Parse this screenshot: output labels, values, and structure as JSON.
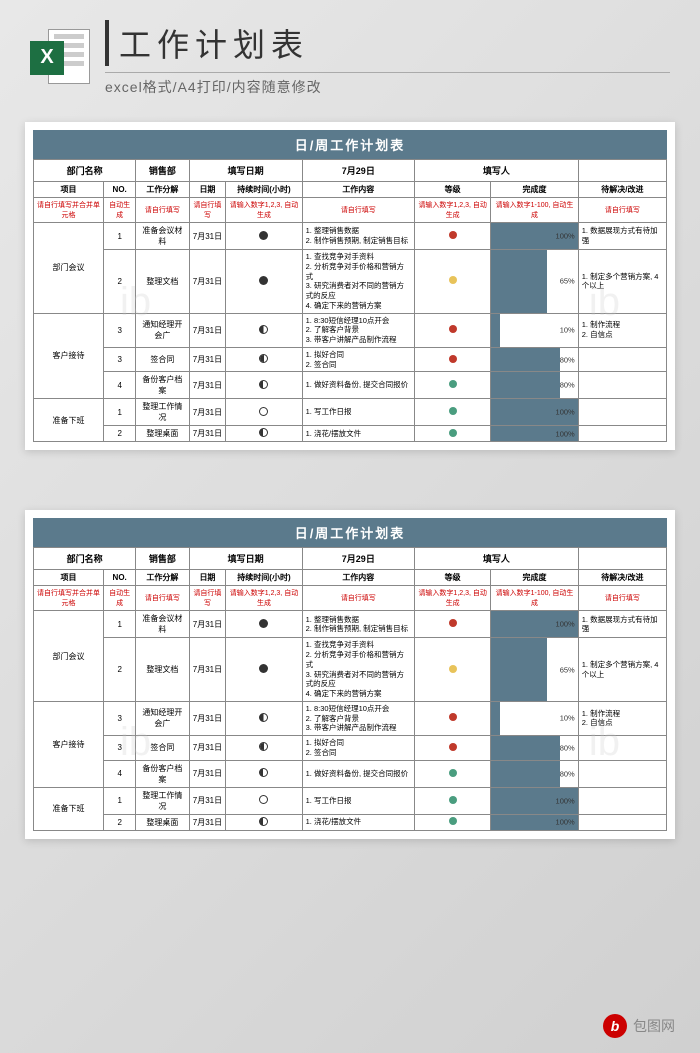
{
  "header": {
    "main_title": "工作计划表",
    "sub_title": "excel格式/A4打印/内容随意修改",
    "icon_letter": "X"
  },
  "footer": {
    "logo_letter": "b",
    "text": "包图网"
  },
  "sheet": {
    "title": "日/周工作计划表",
    "info_row": {
      "dept_label": "部门名称",
      "dept_value": "销售部",
      "date_label": "填写日期",
      "date_value": "7月29日",
      "filler_label": "填写人",
      "filler_value": ""
    },
    "columns": [
      "项目",
      "NO.",
      "工作分解",
      "日期",
      "持续时间(小时)",
      "工作内容",
      "等级",
      "完成度",
      "待解决/改进"
    ],
    "hints": [
      "请自行填写并合并单元格",
      "自动生成",
      "请自行填写",
      "请自行填写",
      "请输入数字1,2,3, 自动生成",
      "请自行填写",
      "请输入数字1,2,3, 自动生成",
      "请输入数字1-100, 自动生成",
      "请自行填写"
    ],
    "groups": [
      {
        "name": "部门会议",
        "rows": [
          {
            "no": "1",
            "task": "准备会议材料",
            "date": "7月31日",
            "moon": "full",
            "content": "1. 整理销售数据\n2. 制作销售预期, 制定销售目标",
            "dot": "red",
            "progress": 100,
            "note": "1. 数据展现方式有待加强"
          },
          {
            "no": "2",
            "task": "整理文档",
            "date": "7月31日",
            "moon": "full",
            "content": "1. 查找竞争对手资料\n2. 分析竞争对手价格和营销方式\n3. 研究消费者对不同的营销方式的反应\n4. 确定下来的营销方案",
            "dot": "orange",
            "progress": 65,
            "note": "1. 制定多个营销方案, 4个以上"
          }
        ]
      },
      {
        "name": "客户接待",
        "rows": [
          {
            "no": "3",
            "task": "通知经理开会广",
            "date": "7月31日",
            "moon": "yin",
            "content": "1. 8:30短信经理10点开会\n2. 了解客户背景\n3. 带客户讲解产品制作流程",
            "dot": "red",
            "progress": 10,
            "note": "1. 制作流程\n2. 自信点"
          },
          {
            "no": "3",
            "task": "签合同",
            "date": "7月31日",
            "moon": "half",
            "content": "1. 拟好合同\n2. 签合同",
            "dot": "red",
            "progress": 80,
            "note": ""
          },
          {
            "no": "4",
            "task": "备份客户档案",
            "date": "7月31日",
            "moon": "cres",
            "content": "1. 做好资料备份, 提交合同报价",
            "dot": "green",
            "progress": 80,
            "note": ""
          }
        ]
      },
      {
        "name": "准备下班",
        "rows": [
          {
            "no": "1",
            "task": "整理工作情况",
            "date": "7月31日",
            "moon": "new",
            "content": "1. 写工作日报",
            "dot": "green",
            "progress": 100,
            "note": ""
          },
          {
            "no": "2",
            "task": "整理桌面",
            "date": "7月31日",
            "moon": "cres",
            "content": "1. 浇花/摆放文件",
            "dot": "green",
            "progress": 100,
            "note": ""
          }
        ]
      }
    ]
  },
  "colors": {
    "header_bg": "#5b7a8c",
    "bar_fill": "#5b7a8c"
  }
}
